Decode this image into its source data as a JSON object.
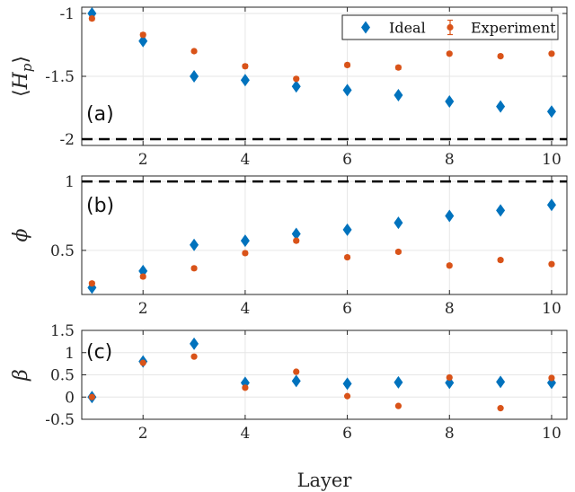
{
  "chart_data": [
    {
      "type": "scatter",
      "panel_label": "(a)",
      "ylabel_parts": [
        "⟨",
        "H",
        "p",
        "⟩"
      ],
      "xlim": [
        0.8,
        10.3
      ],
      "ylim": [
        -2.05,
        -0.95
      ],
      "xticks": [
        2,
        4,
        6,
        8,
        10
      ],
      "yticks": [
        -2,
        -1.5,
        -1
      ],
      "ytick_labels": [
        "-2",
        "-1.5",
        "-1"
      ],
      "grid": true,
      "reference_line": -2,
      "legend": {
        "position": "top-right",
        "entries": [
          "Ideal",
          "Experiment"
        ]
      },
      "x": [
        1,
        2,
        3,
        4,
        5,
        6,
        7,
        8,
        9,
        10
      ],
      "series": [
        {
          "name": "Ideal",
          "marker": "diamond",
          "color": "#0072BD",
          "values": [
            -1.0,
            -1.22,
            -1.5,
            -1.53,
            -1.58,
            -1.61,
            -1.65,
            -1.7,
            -1.74,
            -1.78
          ]
        },
        {
          "name": "Experiment",
          "marker": "circle",
          "color": "#D95319",
          "error_bars": true,
          "values": [
            -1.04,
            -1.17,
            -1.3,
            -1.42,
            -1.52,
            -1.41,
            -1.43,
            -1.32,
            -1.34,
            -1.32
          ],
          "errors": [
            0.015,
            0.015,
            0.012,
            0.015,
            0.012,
            0.015,
            0.015,
            0.012,
            0.012,
            0.012
          ]
        }
      ]
    },
    {
      "type": "scatter",
      "panel_label": "(b)",
      "ylabel": "ϕ",
      "xlim": [
        0.8,
        10.3
      ],
      "ylim": [
        0.18,
        1.04
      ],
      "xticks": [
        2,
        4,
        6,
        8,
        10
      ],
      "yticks": [
        0.5,
        1
      ],
      "ytick_labels": [
        "0.5",
        "1"
      ],
      "grid": true,
      "reference_line": 1,
      "x": [
        1,
        2,
        3,
        4,
        5,
        6,
        7,
        8,
        9,
        10
      ],
      "series": [
        {
          "name": "Ideal",
          "marker": "diamond",
          "color": "#0072BD",
          "values": [
            0.23,
            0.35,
            0.54,
            0.57,
            0.62,
            0.65,
            0.7,
            0.75,
            0.79,
            0.83
          ]
        },
        {
          "name": "Experiment",
          "marker": "circle",
          "color": "#D95319",
          "error_bars": true,
          "values": [
            0.26,
            0.31,
            0.37,
            0.48,
            0.57,
            0.45,
            0.49,
            0.39,
            0.43,
            0.4
          ],
          "errors": [
            0.012,
            0.012,
            0.012,
            0.012,
            0.012,
            0.012,
            0.012,
            0.012,
            0.012,
            0.012
          ]
        }
      ]
    },
    {
      "type": "scatter",
      "panel_label": "(c)",
      "ylabel": "β",
      "xlabel": "Layer",
      "xlim": [
        0.8,
        10.3
      ],
      "ylim": [
        -0.5,
        1.5
      ],
      "xticks": [
        2,
        4,
        6,
        8,
        10
      ],
      "yticks": [
        -0.5,
        0,
        0.5,
        1,
        1.5
      ],
      "ytick_labels": [
        "-0.5",
        "0",
        "0.5",
        "1",
        "1.5"
      ],
      "grid": true,
      "x": [
        1,
        2,
        3,
        4,
        5,
        6,
        7,
        8,
        9,
        10
      ],
      "series": [
        {
          "name": "Ideal",
          "marker": "diamond",
          "color": "#0072BD",
          "values": [
            0.0,
            0.8,
            1.2,
            0.32,
            0.36,
            0.3,
            0.33,
            0.32,
            0.34,
            0.32
          ]
        },
        {
          "name": "Experiment",
          "marker": "circle",
          "color": "#D95319",
          "values": [
            0.0,
            0.77,
            0.91,
            0.21,
            0.57,
            0.02,
            -0.2,
            0.44,
            -0.25,
            0.43
          ]
        }
      ]
    }
  ]
}
